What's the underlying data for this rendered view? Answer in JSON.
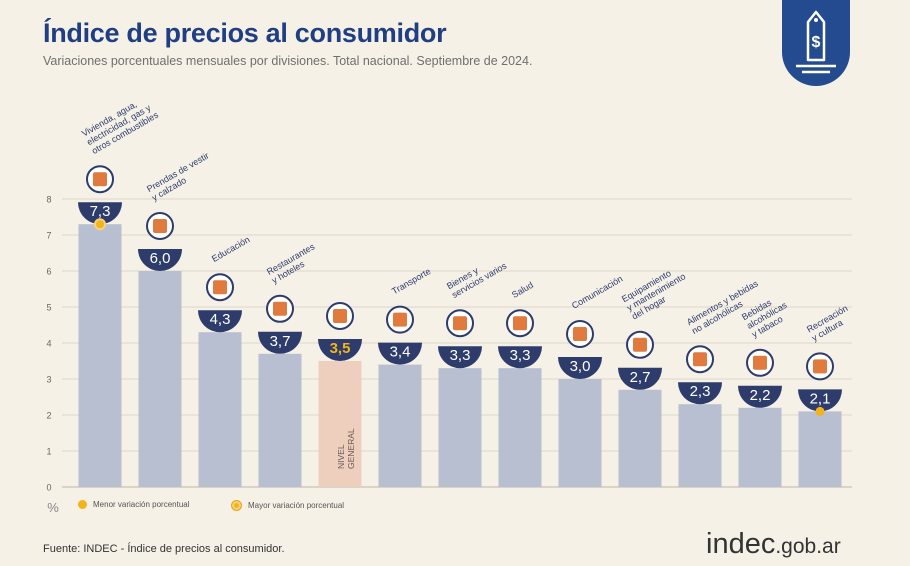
{
  "header": {
    "title": "Índice de precios al consumidor",
    "subtitle": "Variaciones porcentuales mensuales por divisiones. Total nacional. Septiembre de 2024."
  },
  "legend": {
    "min_label": "Menor variación porcentual",
    "max_label": "Mayor variación porcentual"
  },
  "footer": {
    "source": "Fuente: INDEC - Índice de precios al consumidor.",
    "logo_main": "indec",
    "logo_tld": ".gob.ar"
  },
  "colors": {
    "bar": "#b8bfd1",
    "bar_highlight": "#eecfbe",
    "badge": "#2d3c6b",
    "badge_highlight": "#f3b31b",
    "title": "#1f3f82",
    "accent": "#f3b31b"
  },
  "chart_data": {
    "type": "bar",
    "unit_label": "%",
    "ylim": [
      0,
      8
    ],
    "yticks": [
      0,
      1,
      2,
      3,
      4,
      5,
      6,
      7,
      8
    ],
    "grid": true,
    "categories": [
      "Vivienda, agua, electricidad, gas y otros combustibles",
      "Prendas de vestir y calzado",
      "Educación",
      "Restaurantes y hoteles",
      "NIVEL GENERAL",
      "Transporte",
      "Bienes y servicios varios",
      "Salud",
      "Comunicación",
      "Equipamiento y mantenimiento del hogar",
      "Alimentos y bebidas no alcohólicas",
      "Bebidas alcohólicas y tabaco",
      "Recreación y cultura"
    ],
    "category_lines": [
      [
        "Vivienda, agua,",
        "electricidad, gas y",
        "otros combustibles"
      ],
      [
        "Prendas de vestir",
        "y calzado"
      ],
      [
        "Educación"
      ],
      [
        "Restaurantes",
        "y hoteles"
      ],
      [
        "NIVEL",
        "GENERAL"
      ],
      [
        "Transporte"
      ],
      [
        "Bienes y",
        "servicios varios"
      ],
      [
        "Salud"
      ],
      [
        "Comunicación"
      ],
      [
        "Equipamiento",
        "y mantenimiento",
        "del hogar"
      ],
      [
        "Alimentos y bebidas",
        "no alcohólicas"
      ],
      [
        "Bebidas",
        "alcohólicas",
        "y tabaco"
      ],
      [
        "Recreación",
        "y cultura"
      ]
    ],
    "values": [
      7.3,
      6.0,
      4.3,
      3.7,
      3.5,
      3.4,
      3.3,
      3.3,
      3.0,
      2.7,
      2.3,
      2.2,
      2.1
    ],
    "value_labels": [
      "7,3",
      "6,0",
      "4,3",
      "3,7",
      "3,5",
      "3,4",
      "3,3",
      "3,3",
      "3,0",
      "2,7",
      "2,3",
      "2,2",
      "2,1"
    ],
    "highlight_index": 4,
    "max_index": 0,
    "min_index": 12,
    "icons": [
      "house-tools-icon",
      "shirt-icon",
      "books-icon",
      "dish-icon",
      "shopping-basket-icon",
      "bus-icon",
      "comb-icon",
      "first-aid-icon",
      "phone-icon",
      "stove-icon",
      "food-icon",
      "bottle-icon",
      "umbrella-icon"
    ]
  }
}
